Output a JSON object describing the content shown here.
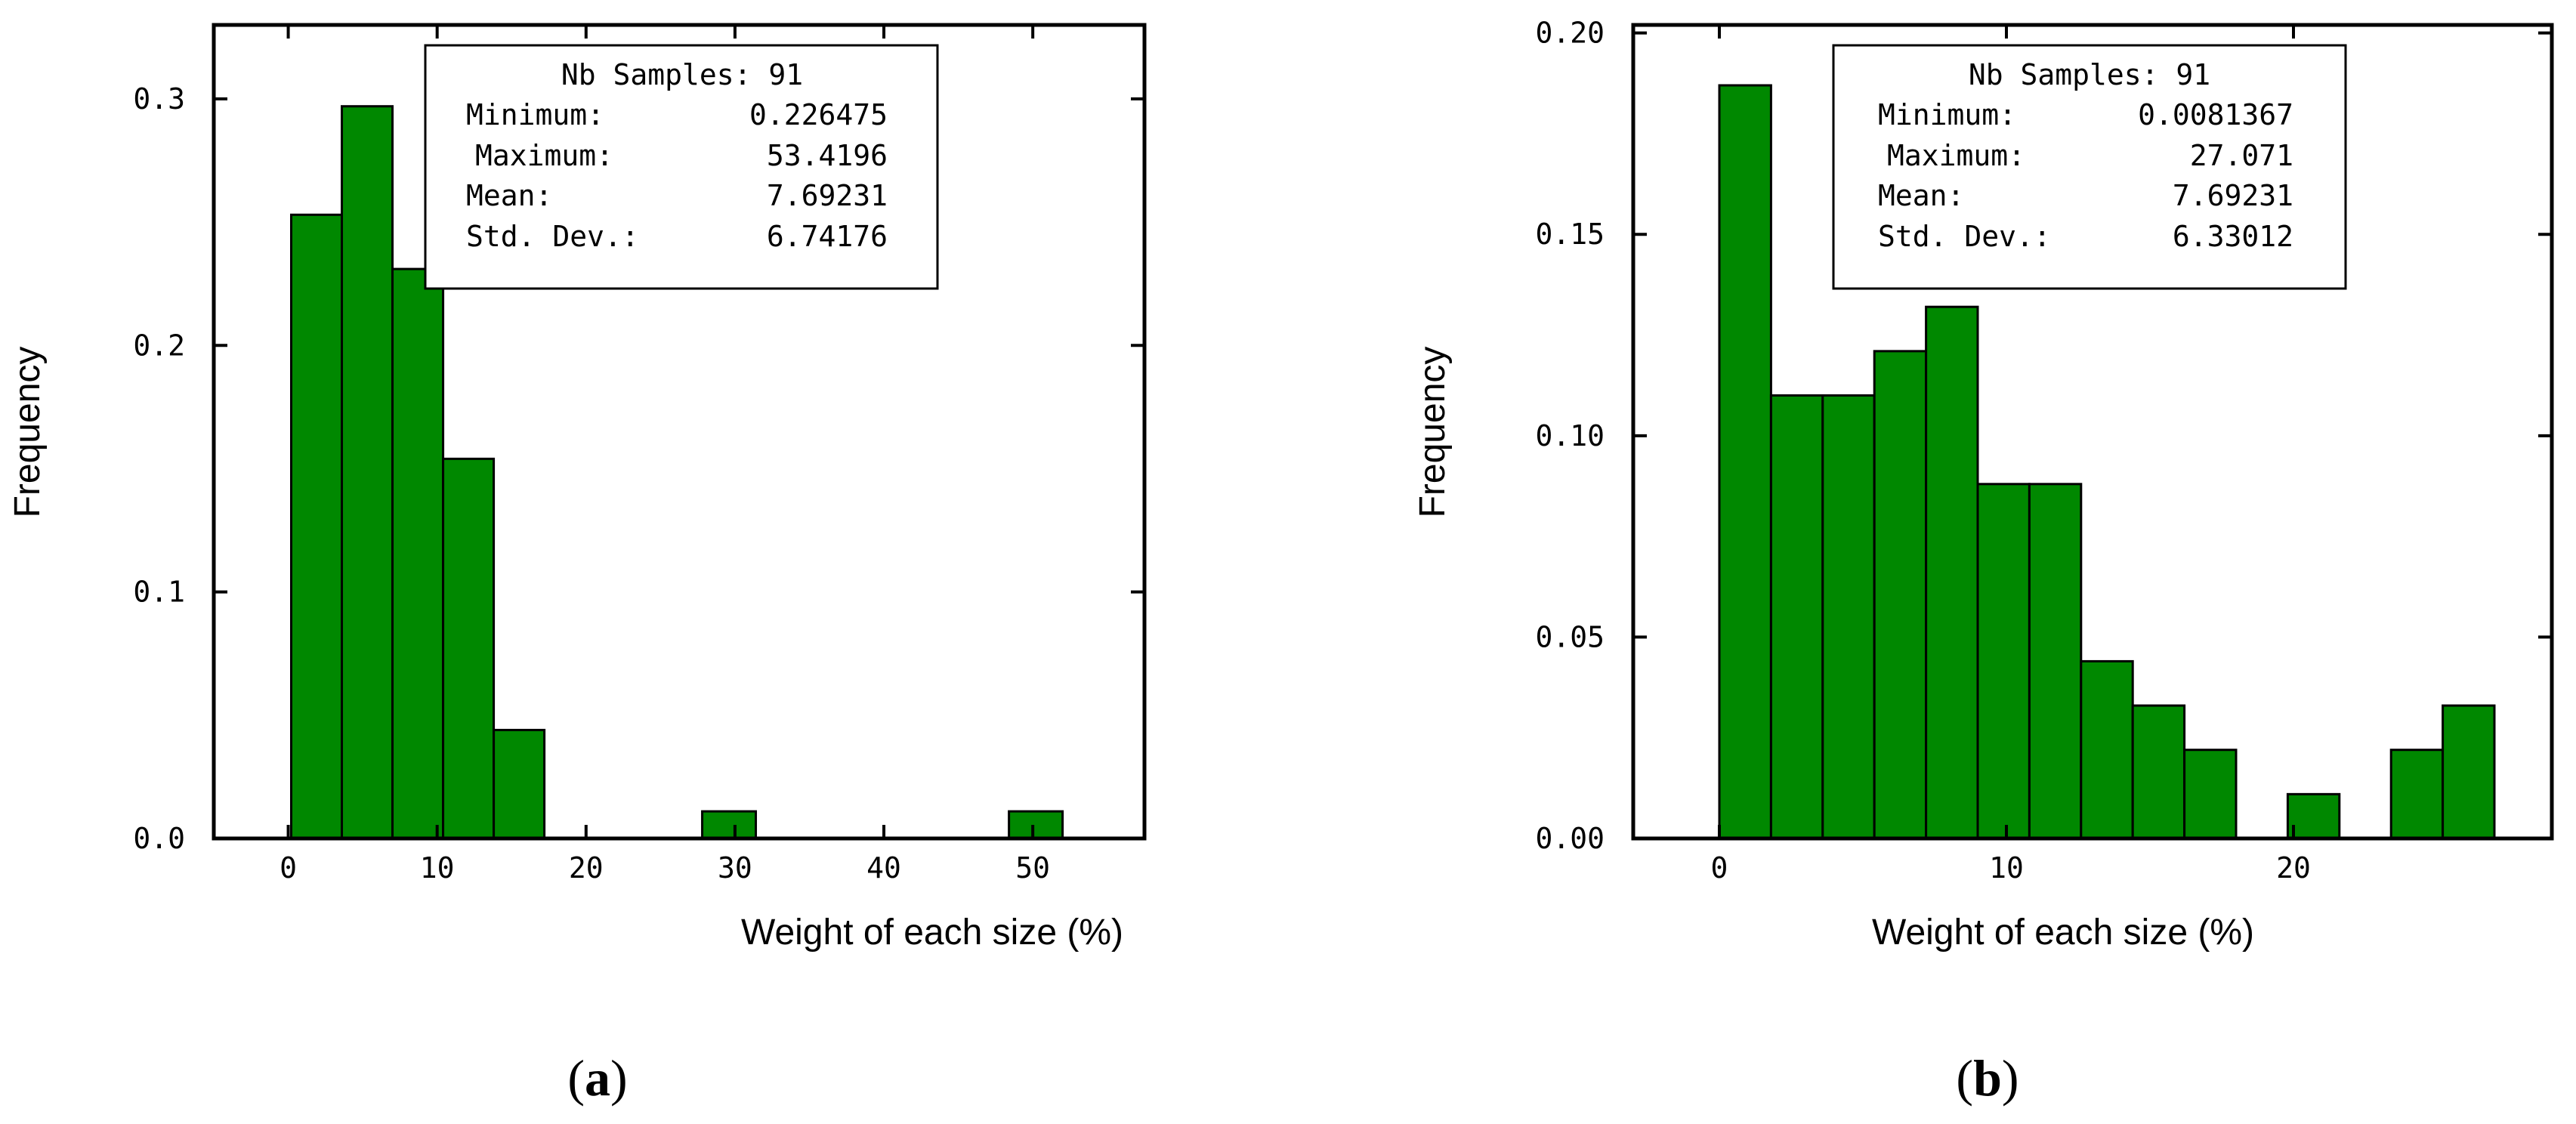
{
  "figure": {
    "panels": [
      {
        "label_open": "(",
        "label_letter": "a",
        "label_close": ")"
      },
      {
        "label_open": "(",
        "label_letter": "b",
        "label_close": ")"
      }
    ]
  },
  "chart_data": [
    {
      "type": "bar",
      "subtype": "histogram",
      "xlabel": "Weight of each size (%)",
      "ylabel": "Frequency",
      "xlim": [
        -5,
        57.5
      ],
      "ylim": [
        0,
        0.33
      ],
      "xticks": [
        0,
        10,
        20,
        30,
        40,
        50
      ],
      "yticks": [
        0.0,
        0.1,
        0.2,
        0.3
      ],
      "ytick_decimals": 1,
      "color": "#008800",
      "bins": [
        {
          "x0": 0.2,
          "x1": 3.6,
          "value": 0.253
        },
        {
          "x0": 3.6,
          "x1": 7.0,
          "value": 0.297
        },
        {
          "x0": 7.0,
          "x1": 10.4,
          "value": 0.231
        },
        {
          "x0": 10.4,
          "x1": 13.8,
          "value": 0.154
        },
        {
          "x0": 13.8,
          "x1": 17.2,
          "value": 0.044
        },
        {
          "x0": 27.8,
          "x1": 31.4,
          "value": 0.011
        },
        {
          "x0": 48.4,
          "x1": 52.0,
          "value": 0.011
        }
      ],
      "stats": [
        {
          "label": "Nb Samples:",
          "value": "91"
        },
        {
          "label": "Minimum:",
          "value": "0.226475"
        },
        {
          "label": "Maximum:",
          "value": "53.4196"
        },
        {
          "label": "Mean:",
          "value": "7.69231"
        },
        {
          "label": "Std. Dev.:",
          "value": "6.74176"
        }
      ]
    },
    {
      "type": "bar",
      "subtype": "histogram",
      "xlabel": "Weight of each size (%)",
      "ylabel": "Frequency",
      "xlim": [
        -3,
        29
      ],
      "ylim": [
        0,
        0.202
      ],
      "xticks": [
        0,
        10,
        20
      ],
      "yticks": [
        0.0,
        0.05,
        0.1,
        0.15,
        0.2
      ],
      "ytick_decimals": 2,
      "color": "#008800",
      "bins": [
        {
          "x0": 0.0,
          "x1": 1.8,
          "value": 0.187
        },
        {
          "x0": 1.8,
          "x1": 3.6,
          "value": 0.11
        },
        {
          "x0": 3.6,
          "x1": 5.4,
          "value": 0.11
        },
        {
          "x0": 5.4,
          "x1": 7.2,
          "value": 0.121
        },
        {
          "x0": 7.2,
          "x1": 9.0,
          "value": 0.132
        },
        {
          "x0": 9.0,
          "x1": 10.8,
          "value": 0.088
        },
        {
          "x0": 10.8,
          "x1": 12.6,
          "value": 0.088
        },
        {
          "x0": 12.6,
          "x1": 14.4,
          "value": 0.044
        },
        {
          "x0": 14.4,
          "x1": 16.2,
          "value": 0.033
        },
        {
          "x0": 16.2,
          "x1": 18.0,
          "value": 0.022
        },
        {
          "x0": 19.8,
          "x1": 21.6,
          "value": 0.011
        },
        {
          "x0": 23.4,
          "x1": 25.2,
          "value": 0.022
        },
        {
          "x0": 25.2,
          "x1": 27.0,
          "value": 0.033
        }
      ],
      "stats": [
        {
          "label": "Nb Samples:",
          "value": "91"
        },
        {
          "label": "Minimum:",
          "value": "0.0081367"
        },
        {
          "label": "Maximum:",
          "value": "27.071"
        },
        {
          "label": "Mean:",
          "value": "7.69231"
        },
        {
          "label": "Std. Dev.:",
          "value": "6.33012"
        }
      ]
    }
  ]
}
